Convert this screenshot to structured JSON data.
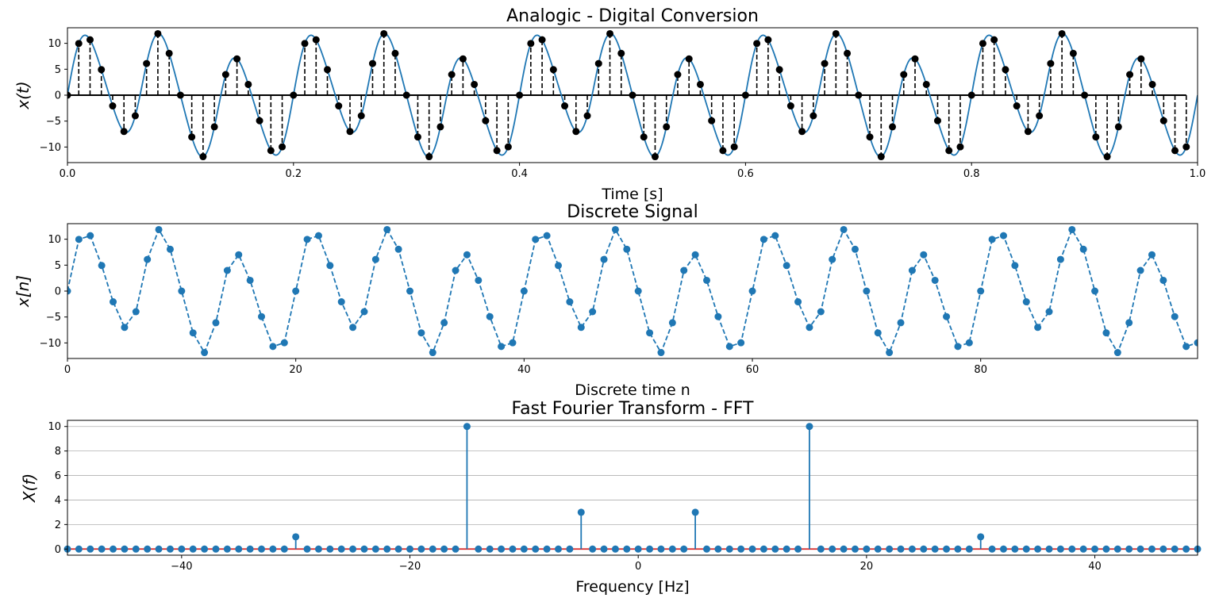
{
  "chart_data": [
    {
      "type": "line",
      "title": "Analogic - Digital Conversion",
      "xlabel": "Time [s]",
      "ylabel": "x(t)",
      "xlim": [
        0,
        1.0
      ],
      "ylim": [
        -13,
        13
      ],
      "xticks": [
        "0.0",
        "0.2",
        "0.4",
        "0.6",
        "0.8",
        "1.0"
      ],
      "yticks": [
        "10",
        "5",
        "0",
        "−5",
        "−10"
      ],
      "signal": {
        "expression": "10*sin(2*pi*15*t) + 3*sin(2*pi*5*t) + 1*sin(2*pi*30*t)",
        "components": [
          {
            "amplitude": 10,
            "frequency_hz": 15
          },
          {
            "amplitude": 3,
            "frequency_hz": 5
          },
          {
            "amplitude": 1,
            "frequency_hz": 30
          }
        ],
        "sample_rate_hz": 100,
        "num_samples": 100
      },
      "series": [
        {
          "kind": "continuous",
          "color": "#1f77b4"
        },
        {
          "kind": "samples",
          "color": "#000000"
        }
      ],
      "grid": false
    },
    {
      "type": "line",
      "title": "Discrete Signal",
      "xlabel": "Discrete time n",
      "ylabel": "x[n]",
      "xlim": [
        0,
        99
      ],
      "ylim": [
        -13,
        13
      ],
      "xticks": [
        "0",
        "20",
        "40",
        "60",
        "80"
      ],
      "yticks": [
        "10",
        "5",
        "0",
        "−5",
        "−10"
      ],
      "series": [
        {
          "kind": "dashed-markers",
          "color": "#1f77b4"
        }
      ],
      "grid": false
    },
    {
      "type": "scatter",
      "title": "Fast Fourier Transform - FFT",
      "xlabel": "Frequency [Hz]",
      "ylabel": "X(f)",
      "xlim": [
        -50,
        49
      ],
      "ylim": [
        -0.5,
        10.5
      ],
      "xticks": [
        "−40",
        "−20",
        "0",
        "20",
        "40"
      ],
      "yticks": [
        "10",
        "8",
        "6",
        "4",
        "2",
        "0"
      ],
      "frequencies_hz_range": [
        -50,
        49
      ],
      "peaks": [
        {
          "f": -30,
          "value": 1
        },
        {
          "f": -15,
          "value": 10
        },
        {
          "f": -5,
          "value": 3
        },
        {
          "f": 5,
          "value": 3
        },
        {
          "f": 15,
          "value": 10
        },
        {
          "f": 30,
          "value": 1
        }
      ],
      "baseline_color": "#d62728",
      "stem_color": "#1f77b4",
      "grid": true
    }
  ]
}
